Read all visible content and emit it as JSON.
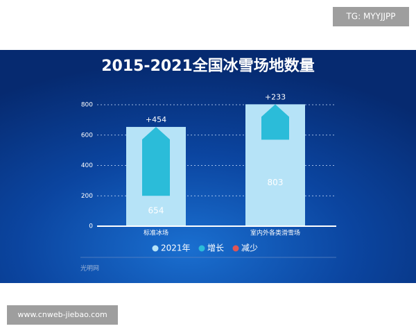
{
  "chart_data": {
    "type": "bar",
    "title": "2015-2021全国冰雪场地数量",
    "categories": [
      "标准冰场",
      "室内外各类滑雪场"
    ],
    "series": [
      {
        "name": "2021年",
        "color": "#b6e3f7",
        "values": [
          654,
          803
        ]
      },
      {
        "name": "增长",
        "color": "#2bbcd9",
        "values": [
          454,
          233
        ],
        "value_labels": [
          "+454",
          "+233"
        ]
      },
      {
        "name": "减少",
        "color": "#e05555",
        "values": [
          null,
          null
        ]
      }
    ],
    "ylim": [
      0,
      800
    ],
    "yticks": [
      0,
      200,
      400,
      600,
      800
    ],
    "grid": true,
    "source": "光明网"
  },
  "watermarks": {
    "top": "TG: MYYJJPP",
    "bottom": "www.cnweb-jiebao.com"
  }
}
